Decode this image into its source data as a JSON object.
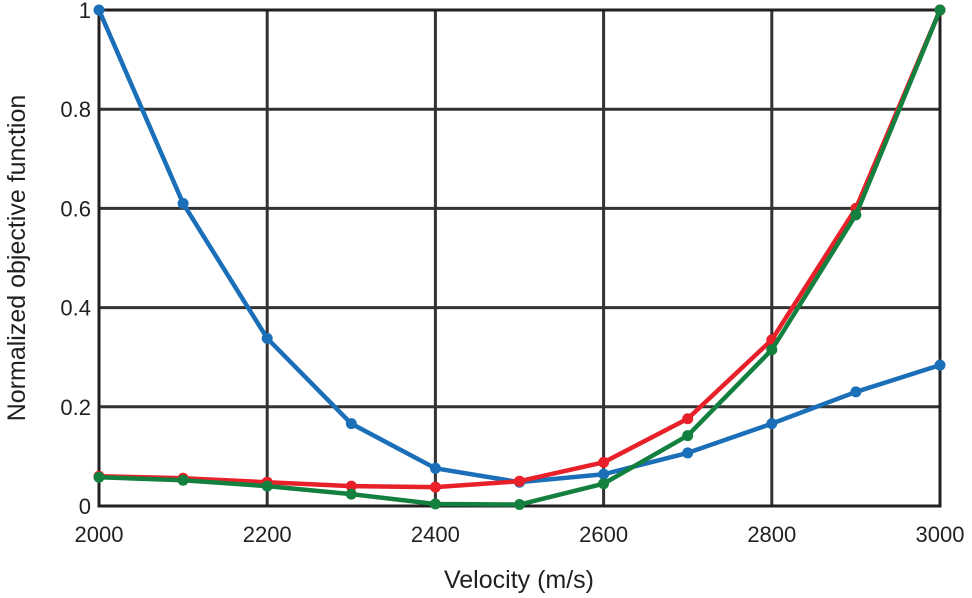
{
  "chart_data": {
    "type": "line",
    "title": "",
    "xlabel": "Velocity (m/s)",
    "ylabel": "Normalized objective function",
    "xlim": [
      2000,
      3000
    ],
    "ylim": [
      0,
      1
    ],
    "grid": true,
    "legend": "none",
    "x": [
      2000,
      2100,
      2200,
      2300,
      2400,
      2500,
      2600,
      2700,
      2800,
      2900,
      3000
    ],
    "xticks": [
      "2000",
      "2200",
      "2400",
      "2600",
      "2800",
      "3000"
    ],
    "xtick_values": [
      2000,
      2200,
      2400,
      2600,
      2800,
      3000
    ],
    "yticks": [
      "0",
      "0.2",
      "0.4",
      "0.6",
      "0.8",
      "1"
    ],
    "ytick_values": [
      0,
      0.2,
      0.4,
      0.6,
      0.8,
      1
    ],
    "series": [
      {
        "name": "blue",
        "color": "#1a6fb8",
        "values": [
          1.0,
          0.61,
          0.338,
          0.166,
          0.076,
          0.048,
          0.064,
          0.107,
          0.166,
          0.23,
          0.284
        ]
      },
      {
        "name": "red",
        "color": "#e8202a",
        "values": [
          0.06,
          0.056,
          0.048,
          0.04,
          0.038,
          0.05,
          0.088,
          0.176,
          0.335,
          0.6,
          1.0
        ]
      },
      {
        "name": "green",
        "color": "#14803f",
        "values": [
          0.058,
          0.052,
          0.04,
          0.024,
          0.004,
          0.003,
          0.045,
          0.142,
          0.315,
          0.587,
          1.0
        ]
      }
    ]
  }
}
